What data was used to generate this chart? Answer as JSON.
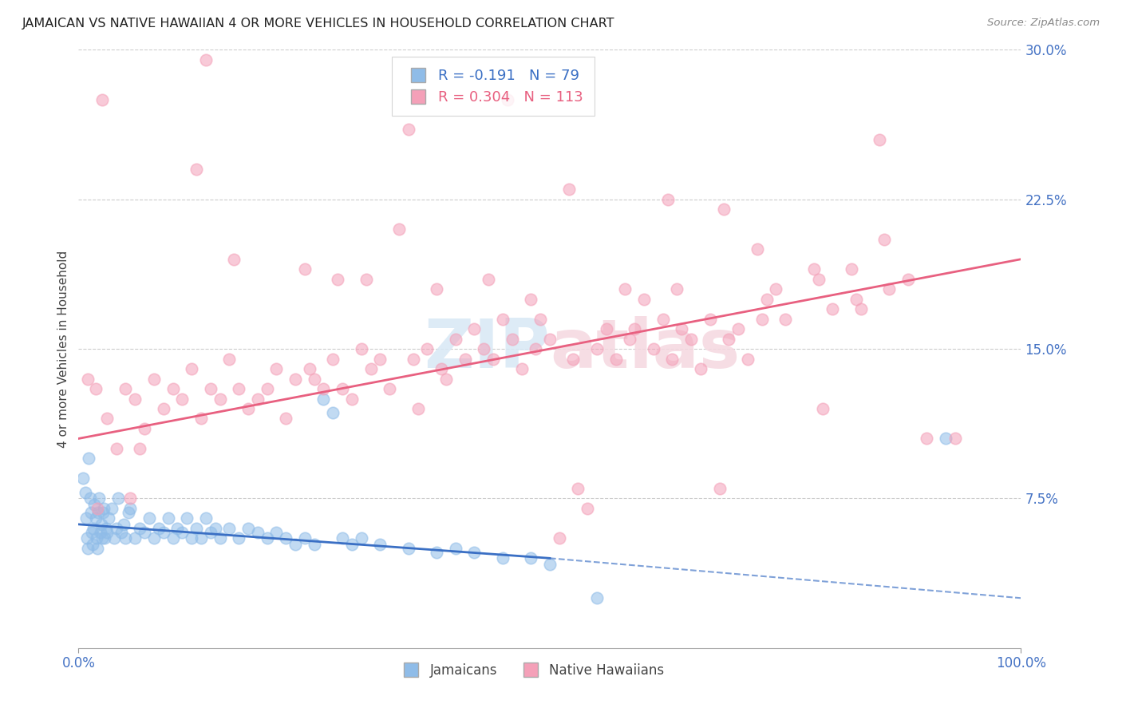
{
  "title": "JAMAICAN VS NATIVE HAWAIIAN 4 OR MORE VEHICLES IN HOUSEHOLD CORRELATION CHART",
  "source": "Source: ZipAtlas.com",
  "ylabel": "4 or more Vehicles in Household",
  "ytick_labels": [
    "7.5%",
    "15.0%",
    "22.5%",
    "30.0%"
  ],
  "ytick_values": [
    7.5,
    15.0,
    22.5,
    30.0
  ],
  "xlim": [
    0.0,
    100.0
  ],
  "ylim": [
    0.0,
    30.0
  ],
  "legend_r_jamaican": "-0.191",
  "legend_n_jamaican": "79",
  "legend_r_hawaiian": "0.304",
  "legend_n_hawaiian": "113",
  "blue_color": "#8FBCE8",
  "pink_color": "#F4A0B8",
  "blue_line_color": "#3A6FC4",
  "pink_line_color": "#E86080",
  "background_color": "#FFFFFF",
  "grid_color": "#CCCCCC",
  "jamaican_line": [
    0.0,
    6.2,
    50.0,
    4.5
  ],
  "jamaican_dash": [
    50.0,
    4.5,
    100.0,
    2.5
  ],
  "hawaiian_line": [
    0.0,
    10.5,
    100.0,
    19.5
  ],
  "jamaican_points": [
    [
      0.5,
      8.5
    ],
    [
      0.7,
      7.8
    ],
    [
      0.8,
      6.5
    ],
    [
      0.9,
      5.5
    ],
    [
      1.0,
      5.0
    ],
    [
      1.1,
      9.5
    ],
    [
      1.2,
      7.5
    ],
    [
      1.3,
      6.8
    ],
    [
      1.4,
      5.8
    ],
    [
      1.5,
      5.2
    ],
    [
      1.6,
      6.0
    ],
    [
      1.7,
      7.2
    ],
    [
      1.8,
      6.5
    ],
    [
      1.9,
      5.5
    ],
    [
      2.0,
      5.0
    ],
    [
      2.1,
      6.8
    ],
    [
      2.2,
      7.5
    ],
    [
      2.3,
      5.8
    ],
    [
      2.4,
      6.2
    ],
    [
      2.5,
      5.5
    ],
    [
      2.6,
      6.8
    ],
    [
      2.7,
      7.0
    ],
    [
      2.8,
      5.5
    ],
    [
      2.9,
      6.0
    ],
    [
      3.0,
      5.8
    ],
    [
      3.2,
      6.5
    ],
    [
      3.5,
      7.0
    ],
    [
      3.8,
      5.5
    ],
    [
      4.0,
      6.0
    ],
    [
      4.2,
      7.5
    ],
    [
      4.5,
      5.8
    ],
    [
      4.8,
      6.2
    ],
    [
      5.0,
      5.5
    ],
    [
      5.3,
      6.8
    ],
    [
      5.5,
      7.0
    ],
    [
      6.0,
      5.5
    ],
    [
      6.5,
      6.0
    ],
    [
      7.0,
      5.8
    ],
    [
      7.5,
      6.5
    ],
    [
      8.0,
      5.5
    ],
    [
      8.5,
      6.0
    ],
    [
      9.0,
      5.8
    ],
    [
      9.5,
      6.5
    ],
    [
      10.0,
      5.5
    ],
    [
      10.5,
      6.0
    ],
    [
      11.0,
      5.8
    ],
    [
      11.5,
      6.5
    ],
    [
      12.0,
      5.5
    ],
    [
      12.5,
      6.0
    ],
    [
      13.0,
      5.5
    ],
    [
      13.5,
      6.5
    ],
    [
      14.0,
      5.8
    ],
    [
      14.5,
      6.0
    ],
    [
      15.0,
      5.5
    ],
    [
      16.0,
      6.0
    ],
    [
      17.0,
      5.5
    ],
    [
      18.0,
      6.0
    ],
    [
      19.0,
      5.8
    ],
    [
      20.0,
      5.5
    ],
    [
      21.0,
      5.8
    ],
    [
      22.0,
      5.5
    ],
    [
      23.0,
      5.2
    ],
    [
      24.0,
      5.5
    ],
    [
      25.0,
      5.2
    ],
    [
      26.0,
      12.5
    ],
    [
      27.0,
      11.8
    ],
    [
      28.0,
      5.5
    ],
    [
      29.0,
      5.2
    ],
    [
      30.0,
      5.5
    ],
    [
      32.0,
      5.2
    ],
    [
      35.0,
      5.0
    ],
    [
      38.0,
      4.8
    ],
    [
      40.0,
      5.0
    ],
    [
      42.0,
      4.8
    ],
    [
      45.0,
      4.5
    ],
    [
      48.0,
      4.5
    ],
    [
      50.0,
      4.2
    ],
    [
      55.0,
      2.5
    ],
    [
      92.0,
      10.5
    ]
  ],
  "hawaiian_points": [
    [
      1.0,
      13.5
    ],
    [
      2.0,
      7.0
    ],
    [
      2.5,
      27.5
    ],
    [
      3.0,
      11.5
    ],
    [
      4.0,
      10.0
    ],
    [
      5.0,
      13.0
    ],
    [
      6.0,
      12.5
    ],
    [
      7.0,
      11.0
    ],
    [
      8.0,
      13.5
    ],
    [
      9.0,
      12.0
    ],
    [
      10.0,
      13.0
    ],
    [
      11.0,
      12.5
    ],
    [
      12.0,
      14.0
    ],
    [
      12.5,
      24.0
    ],
    [
      13.0,
      11.5
    ],
    [
      13.5,
      29.5
    ],
    [
      14.0,
      13.0
    ],
    [
      15.0,
      12.5
    ],
    [
      16.0,
      14.5
    ],
    [
      16.5,
      19.5
    ],
    [
      17.0,
      13.0
    ],
    [
      18.0,
      12.0
    ],
    [
      19.0,
      12.5
    ],
    [
      20.0,
      13.0
    ],
    [
      21.0,
      14.0
    ],
    [
      22.0,
      11.5
    ],
    [
      23.0,
      13.5
    ],
    [
      24.0,
      19.0
    ],
    [
      24.5,
      14.0
    ],
    [
      25.0,
      13.5
    ],
    [
      26.0,
      13.0
    ],
    [
      27.0,
      14.5
    ],
    [
      27.5,
      18.5
    ],
    [
      28.0,
      13.0
    ],
    [
      29.0,
      12.5
    ],
    [
      30.0,
      15.0
    ],
    [
      30.5,
      18.5
    ],
    [
      31.0,
      14.0
    ],
    [
      32.0,
      14.5
    ],
    [
      33.0,
      13.0
    ],
    [
      34.0,
      21.0
    ],
    [
      35.0,
      26.0
    ],
    [
      35.5,
      14.5
    ],
    [
      36.0,
      12.0
    ],
    [
      37.0,
      15.0
    ],
    [
      38.0,
      18.0
    ],
    [
      38.5,
      14.0
    ],
    [
      39.0,
      13.5
    ],
    [
      40.0,
      15.5
    ],
    [
      41.0,
      14.5
    ],
    [
      42.0,
      16.0
    ],
    [
      43.0,
      15.0
    ],
    [
      43.5,
      18.5
    ],
    [
      44.0,
      14.5
    ],
    [
      45.0,
      16.5
    ],
    [
      45.5,
      27.5
    ],
    [
      46.0,
      15.5
    ],
    [
      47.0,
      14.0
    ],
    [
      48.0,
      17.5
    ],
    [
      48.5,
      15.0
    ],
    [
      49.0,
      16.5
    ],
    [
      50.0,
      15.5
    ],
    [
      51.0,
      5.5
    ],
    [
      52.0,
      23.0
    ],
    [
      52.5,
      14.5
    ],
    [
      53.0,
      8.0
    ],
    [
      54.0,
      7.0
    ],
    [
      55.0,
      15.0
    ],
    [
      56.0,
      16.0
    ],
    [
      57.0,
      14.5
    ],
    [
      58.0,
      18.0
    ],
    [
      58.5,
      15.5
    ],
    [
      59.0,
      16.0
    ],
    [
      60.0,
      17.5
    ],
    [
      61.0,
      15.0
    ],
    [
      62.0,
      16.5
    ],
    [
      62.5,
      22.5
    ],
    [
      63.0,
      14.5
    ],
    [
      63.5,
      18.0
    ],
    [
      64.0,
      16.0
    ],
    [
      65.0,
      15.5
    ],
    [
      66.0,
      14.0
    ],
    [
      67.0,
      16.5
    ],
    [
      68.0,
      8.0
    ],
    [
      68.5,
      22.0
    ],
    [
      69.0,
      15.5
    ],
    [
      70.0,
      16.0
    ],
    [
      71.0,
      14.5
    ],
    [
      72.0,
      20.0
    ],
    [
      72.5,
      16.5
    ],
    [
      73.0,
      17.5
    ],
    [
      74.0,
      18.0
    ],
    [
      75.0,
      16.5
    ],
    [
      78.0,
      19.0
    ],
    [
      78.5,
      18.5
    ],
    [
      79.0,
      12.0
    ],
    [
      80.0,
      17.0
    ],
    [
      82.0,
      19.0
    ],
    [
      82.5,
      17.5
    ],
    [
      83.0,
      17.0
    ],
    [
      85.0,
      25.5
    ],
    [
      85.5,
      20.5
    ],
    [
      86.0,
      18.0
    ],
    [
      88.0,
      18.5
    ],
    [
      90.0,
      10.5
    ],
    [
      93.0,
      10.5
    ],
    [
      1.8,
      13.0
    ],
    [
      6.5,
      10.0
    ],
    [
      5.5,
      7.5
    ]
  ]
}
